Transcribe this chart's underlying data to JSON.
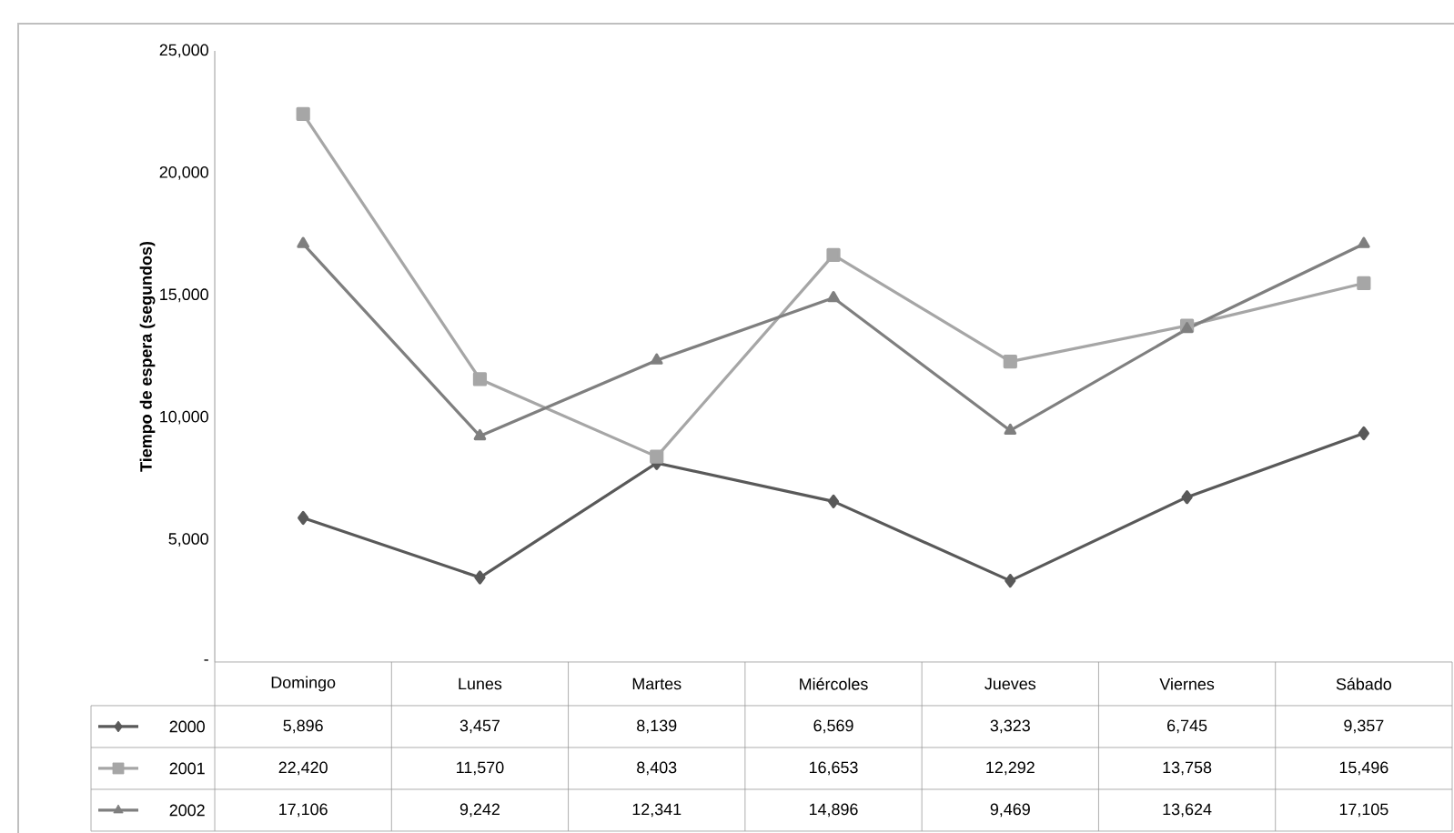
{
  "chart_data": {
    "type": "line",
    "ylabel": "Tiempo de espera (segundos)",
    "categories": [
      "Domingo",
      "Lunes",
      "Martes",
      "Miércoles",
      "Jueves",
      "Viernes",
      "Sábado"
    ],
    "ylim": [
      0,
      25000
    ],
    "yticks": [
      {
        "value": 0,
        "label": "-"
      },
      {
        "value": 5000,
        "label": "5,000"
      },
      {
        "value": 10000,
        "label": "10,000"
      },
      {
        "value": 15000,
        "label": "15,000"
      },
      {
        "value": 20000,
        "label": "20,000"
      },
      {
        "value": 25000,
        "label": "25,000"
      }
    ],
    "grid": false,
    "legend": "bottom left",
    "line_style": "solid",
    "series": [
      {
        "name": "2000",
        "color": "#595959",
        "marker": "diamond",
        "values": [
          5896,
          3457,
          8139,
          6569,
          3323,
          6745,
          9357
        ],
        "value_labels": [
          "5,896",
          "3,457",
          "8,139",
          "6,569",
          "3,323",
          "6,745",
          "9,357"
        ]
      },
      {
        "name": "2001",
        "color": "#a6a6a6",
        "marker": "square",
        "values": [
          22420,
          11570,
          8403,
          16653,
          12292,
          13758,
          15496
        ],
        "value_labels": [
          "22,420",
          "11,570",
          "8,403",
          "16,653",
          "12,292",
          "13,758",
          "15,496"
        ]
      },
      {
        "name": "2002",
        "color": "#7f7f7f",
        "marker": "triangle",
        "values": [
          17106,
          9242,
          12341,
          14896,
          9469,
          13624,
          17105
        ],
        "value_labels": [
          "17,106",
          "9,242",
          "12,341",
          "14,896",
          "9,469",
          "13,624",
          "17,105"
        ]
      }
    ]
  }
}
